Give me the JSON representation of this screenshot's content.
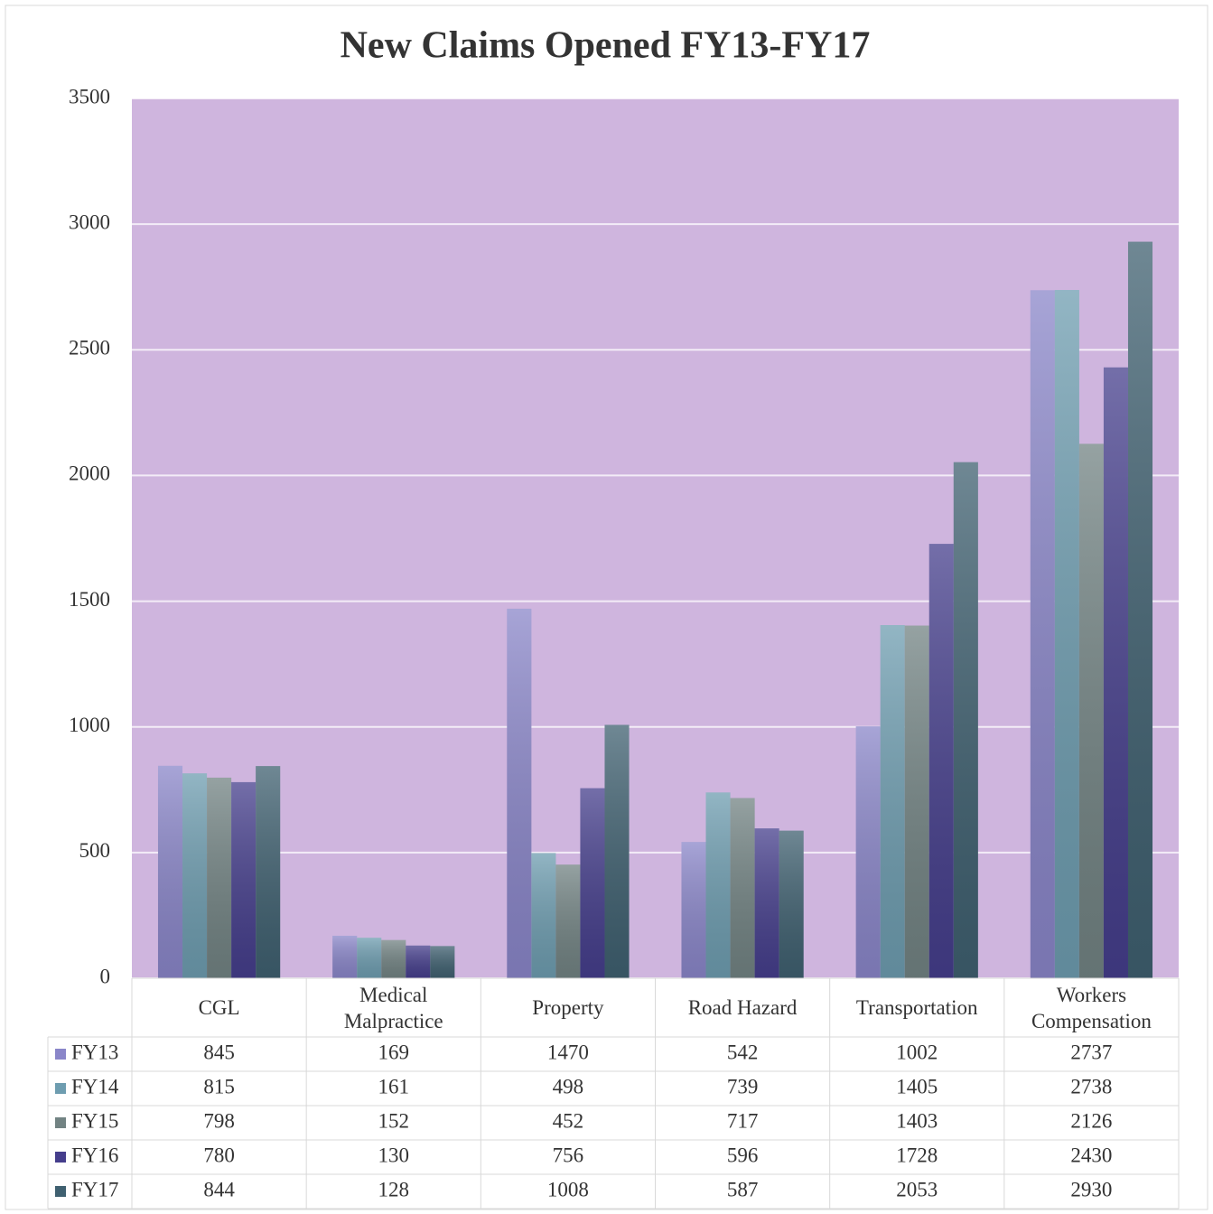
{
  "chart_data": {
    "type": "bar",
    "title": "New Claims Opened FY13-FY17",
    "categories": [
      "CGL",
      "Medical Malpractice",
      "Property",
      "Road Hazard",
      "Transportation",
      "Workers Compensation"
    ],
    "series": [
      {
        "name": "FY13",
        "color": "#8a86c9",
        "values": [
          845,
          169,
          1470,
          542,
          1002,
          2737
        ]
      },
      {
        "name": "FY14",
        "color": "#6e9db0",
        "values": [
          815,
          161,
          498,
          739,
          1405,
          2738
        ]
      },
      {
        "name": "FY15",
        "color": "#728383",
        "values": [
          798,
          152,
          452,
          717,
          1403,
          2126
        ]
      },
      {
        "name": "FY16",
        "color": "#453e8c",
        "values": [
          780,
          130,
          756,
          596,
          1728,
          2430
        ]
      },
      {
        "name": "FY17",
        "color": "#3f6070",
        "values": [
          844,
          128,
          1008,
          587,
          2053,
          2930
        ]
      }
    ],
    "ylim": [
      0,
      3500
    ],
    "yticks": [
      0,
      500,
      1000,
      1500,
      2000,
      2500,
      3000,
      3500
    ],
    "grid": true,
    "plot_background": "#cfb5de"
  }
}
